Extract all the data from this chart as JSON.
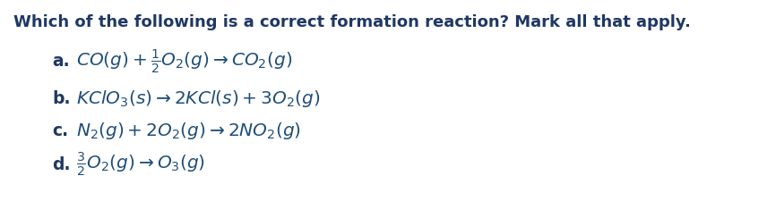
{
  "title": "Which of the following is a correct formation reaction? Mark all that apply.",
  "background_color": "#ffffff",
  "title_color": "#1f3864",
  "math_color": "#1f4e79",
  "label_color": "#1f3864",
  "title_fontsize": 13.0,
  "math_fontsize": 14.5,
  "label_fontsize": 13.5,
  "items": [
    {
      "label": "a.",
      "math": "$\\mathit{CO(g) + \\frac{1}{2}O_2(g) \\rightarrow CO_2(g)}$"
    },
    {
      "label": "b.",
      "math": "$\\mathit{KClO_3(s) \\rightarrow 2KCl(s) + 3O_2(g)}$"
    },
    {
      "label": "c.",
      "math": "$\\mathit{N_2(g) + 2O_2(g) \\rightarrow 2NO_2(g)}$"
    },
    {
      "label": "d.",
      "math": "$\\mathit{\\frac{3}{2}O_2(g) \\rightarrow O_3(g)}$"
    }
  ]
}
